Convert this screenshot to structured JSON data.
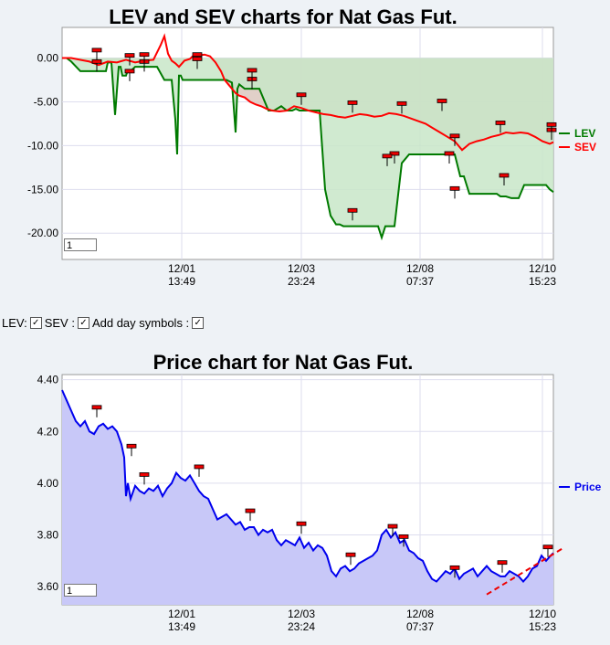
{
  "chart_data": [
    {
      "type": "area",
      "title": "LEV and SEV charts for Nat Gas Fut.",
      "x_ticks": [
        {
          "line1": "12/01",
          "line2": "13:49"
        },
        {
          "line1": "12/03",
          "line2": "23:24"
        },
        {
          "line1": "12/08",
          "line2": "07:37"
        },
        {
          "line1": "12/10",
          "line2": "15:23"
        }
      ],
      "y_ticks": [
        "0.00",
        "-5.00",
        "-10.00",
        "-15.00",
        "-20.00"
      ],
      "ylim": [
        -23,
        3.5
      ],
      "legend_position": "right",
      "series": [
        {
          "name": "LEV",
          "color": "#007a00",
          "x": [
            0,
            5,
            10,
            20,
            22,
            26,
            28,
            30,
            34,
            38,
            45,
            48,
            50,
            54,
            58,
            62,
            64,
            66,
            70,
            72,
            76,
            80,
            88,
            96,
            104,
            112,
            120,
            124,
            126,
            128,
            130,
            132,
            138,
            144,
            150,
            160,
            168,
            174,
            180,
            186,
            190,
            192,
            194,
            200,
            208,
            216,
            226,
            232,
            240,
            246,
            252,
            256,
            260,
            262,
            266,
            268,
            272,
            276,
            282,
            288,
            294,
            300,
            304,
            308,
            312,
            316,
            318,
            322,
            326,
            332,
            338,
            342,
            346,
            350,
            354,
            358,
            364,
            372,
            380,
            388,
            396,
            402,
            406,
            410,
            416,
            422,
            430,
            436,
            440,
            446,
            452,
            458,
            464,
            470,
            476,
            480,
            486,
            492,
            500,
            506,
            510,
            514,
            518,
            522,
            526,
            530,
            534,
            538
          ],
          "y": [
            0,
            0,
            -0.4,
            -1.5,
            -1.5,
            -1.5,
            -1.5,
            -1.5,
            -1.5,
            -1.5,
            -1.5,
            -1.5,
            -0.5,
            -0.5,
            -6.5,
            -1.0,
            -1.0,
            -2.0,
            -2.0,
            -1.4,
            -1.4,
            -1.0,
            -1.0,
            -1.0,
            -1.0,
            -2.5,
            -2.5,
            -7,
            -11,
            -2.0,
            -2.0,
            -2.5,
            -2.5,
            -2.5,
            -2.5,
            -2.5,
            -2.5,
            -2.5,
            -2.5,
            -2.8,
            -8.5,
            -3.5,
            -3.0,
            -3.5,
            -3.5,
            -3.5,
            -6.0,
            -6.0,
            -5.5,
            -6.0,
            -6.0,
            -5.8,
            -6.0,
            -6.0,
            -6.0,
            -6.0,
            -6.0,
            -6.0,
            -6.0,
            -15.0,
            -18.0,
            -19.0,
            -19.0,
            -19.2,
            -19.2,
            -19.2,
            -19.2,
            -19.2,
            -19.2,
            -19.2,
            -19.2,
            -19.2,
            -19.2,
            -20.5,
            -19.2,
            -19.2,
            -19.2,
            -12.0,
            -11.0,
            -11.0,
            -11.0,
            -11.0,
            -11.0,
            -11.0,
            -11.0,
            -11.0,
            -11.0,
            -13.5,
            -13.5,
            -15.5,
            -15.5,
            -15.5,
            -15.5,
            -15.5,
            -15.5,
            -15.8,
            -15.8,
            -16.0,
            -16.0,
            -14.5,
            -14.5,
            -14.5,
            -14.5,
            -14.5,
            -14.5,
            -14.5,
            -15.0,
            -15.3
          ],
          "fill": "#c8e6c8"
        },
        {
          "name": "SEV",
          "color": "#ff0000",
          "x": [
            0,
            10,
            20,
            30,
            40,
            50,
            60,
            70,
            80,
            90,
            100,
            108,
            112,
            116,
            120,
            124,
            128,
            134,
            140,
            146,
            150,
            156,
            162,
            168,
            174,
            178,
            182,
            186,
            190,
            194,
            200,
            206,
            212,
            218,
            224,
            230,
            238,
            246,
            254,
            262,
            270,
            278,
            286,
            294,
            302,
            310,
            318,
            326,
            334,
            342,
            350,
            358,
            366,
            374,
            382,
            390,
            398,
            406,
            414,
            422,
            430,
            438,
            446,
            454,
            462,
            470,
            478,
            486,
            494,
            502,
            510,
            518,
            526,
            534,
            538
          ],
          "y": [
            0,
            0,
            -0.2,
            -0.4,
            -0.8,
            -0.4,
            -0.5,
            -0.2,
            -0.5,
            -0.3,
            -0.2,
            1.5,
            2.5,
            0.5,
            -0.3,
            -0.6,
            -1.0,
            -0.3,
            -0.1,
            0.5,
            0.3,
            0.4,
            0.2,
            -0.5,
            -1.5,
            -2.5,
            -3.0,
            -3.5,
            -4.0,
            -4.3,
            -4.5,
            -5.0,
            -5.3,
            -5.5,
            -5.8,
            -6.0,
            -6.1,
            -6.0,
            -5.5,
            -5.7,
            -6.0,
            -6.2,
            -6.4,
            -6.5,
            -6.7,
            -6.8,
            -6.6,
            -6.4,
            -6.5,
            -6.7,
            -6.6,
            -6.3,
            -6.4,
            -6.6,
            -6.9,
            -7.2,
            -7.5,
            -8.0,
            -8.5,
            -9.0,
            -9.5,
            -10.5,
            -9.8,
            -9.5,
            -9.3,
            -9.0,
            -8.8,
            -8.5,
            -8.6,
            -8.5,
            -8.6,
            -9.0,
            -9.5,
            -9.8,
            -9.6
          ],
          "fill": "#dcc8be"
        }
      ]
    },
    {
      "type": "area",
      "title": "Price chart for Nat Gas Fut.",
      "x_ticks": [
        {
          "line1": "12/01",
          "line2": "13:49"
        },
        {
          "line1": "12/03",
          "line2": "23:24"
        },
        {
          "line1": "12/08",
          "line2": "07:37"
        },
        {
          "line1": "12/10",
          "line2": "15:23"
        }
      ],
      "y_ticks": [
        "4.40",
        "4.20",
        "4.00",
        "3.80",
        "3.60"
      ],
      "ylim": [
        3.53,
        4.42
      ],
      "legend_position": "right",
      "series": [
        {
          "name": "Price",
          "color": "#0000ee",
          "fill": "#c8c8f8",
          "x": [
            0,
            5,
            10,
            15,
            20,
            25,
            30,
            35,
            40,
            45,
            50,
            55,
            60,
            65,
            68,
            70,
            72,
            75,
            80,
            85,
            90,
            95,
            100,
            105,
            110,
            115,
            120,
            125,
            130,
            135,
            140,
            145,
            150,
            155,
            160,
            165,
            170,
            175,
            180,
            185,
            190,
            195,
            200,
            205,
            210,
            215,
            220,
            225,
            230,
            235,
            240,
            245,
            250,
            255,
            260,
            265,
            270,
            275,
            280,
            285,
            290,
            295,
            300,
            305,
            310,
            315,
            320,
            325,
            330,
            335,
            340,
            345,
            350,
            355,
            360,
            365,
            370,
            375,
            380,
            385,
            390,
            395,
            400,
            405,
            410,
            415,
            420,
            425,
            430,
            435,
            440,
            445,
            450,
            455,
            460,
            465,
            470,
            475,
            480,
            485,
            490,
            495,
            500,
            505,
            510,
            515,
            520,
            525,
            530,
            535,
            538
          ],
          "y": [
            4.36,
            4.32,
            4.28,
            4.24,
            4.22,
            4.24,
            4.2,
            4.19,
            4.22,
            4.23,
            4.21,
            4.22,
            4.2,
            4.15,
            4.1,
            3.95,
            4.0,
            3.94,
            3.99,
            3.97,
            3.96,
            3.98,
            3.97,
            3.99,
            3.95,
            3.98,
            4.0,
            4.04,
            4.02,
            4.01,
            4.03,
            4.0,
            3.97,
            3.95,
            3.94,
            3.9,
            3.86,
            3.87,
            3.88,
            3.86,
            3.84,
            3.85,
            3.82,
            3.83,
            3.83,
            3.8,
            3.82,
            3.81,
            3.82,
            3.78,
            3.76,
            3.78,
            3.77,
            3.76,
            3.79,
            3.75,
            3.77,
            3.74,
            3.76,
            3.75,
            3.72,
            3.66,
            3.64,
            3.67,
            3.68,
            3.66,
            3.67,
            3.69,
            3.7,
            3.71,
            3.72,
            3.74,
            3.8,
            3.82,
            3.79,
            3.81,
            3.77,
            3.78,
            3.74,
            3.73,
            3.71,
            3.7,
            3.66,
            3.63,
            3.62,
            3.64,
            3.66,
            3.65,
            3.67,
            3.63,
            3.65,
            3.66,
            3.67,
            3.64,
            3.66,
            3.68,
            3.66,
            3.65,
            3.64,
            3.64,
            3.66,
            3.65,
            3.64,
            3.62,
            3.64,
            3.67,
            3.68,
            3.72,
            3.7,
            3.72,
            3.73
          ]
        }
      ],
      "trendline": {
        "x": [
          465,
          538
        ],
        "y": [
          3.57,
          3.73
        ],
        "color": "#ee0000",
        "dashed": true
      }
    }
  ],
  "controls": {
    "lev_label": "LEV:",
    "sev_label": "SEV :",
    "day_symbols_label": "Add day symbols :"
  },
  "pager": {
    "lev_page": "1",
    "price_page": "1"
  }
}
